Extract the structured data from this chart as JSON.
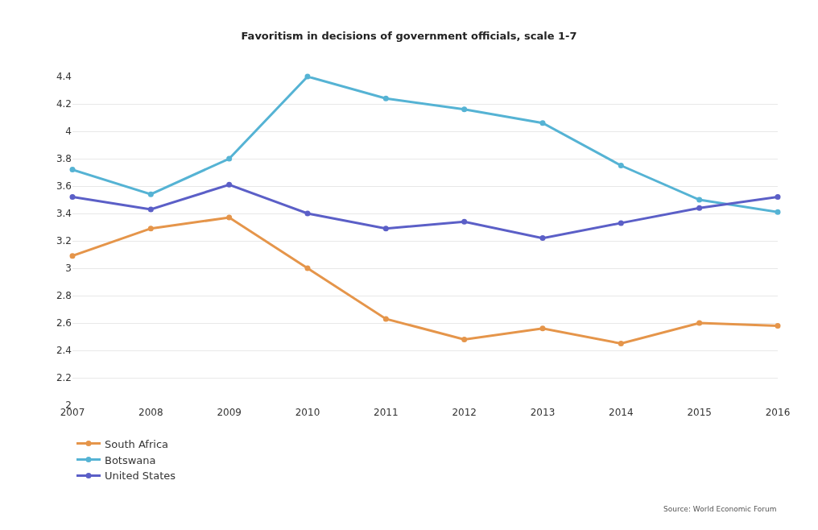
{
  "chart_data": {
    "type": "line",
    "title": "Favoritism in decisions of government officials, scale 1-7",
    "x": [
      2007,
      2008,
      2009,
      2010,
      2011,
      2012,
      2013,
      2014,
      2015,
      2016
    ],
    "xlim": [
      2007,
      2016
    ],
    "xticks": [
      2007,
      2008,
      2009,
      2010,
      2011,
      2012,
      2013,
      2014,
      2015,
      2016
    ],
    "ylim": [
      2,
      4.4
    ],
    "yticks": [
      2,
      2.2,
      2.4,
      2.6,
      2.8,
      3,
      3.2,
      3.4,
      3.6,
      3.8,
      4,
      4.2,
      4.4
    ],
    "series": [
      {
        "name": "South Africa",
        "color": "#e5954a",
        "values": [
          3.09,
          3.29,
          3.37,
          3.0,
          2.63,
          2.48,
          2.56,
          2.45,
          2.6,
          2.58
        ]
      },
      {
        "name": "Botswana",
        "color": "#55b3d4",
        "values": [
          3.72,
          3.54,
          3.8,
          4.4,
          4.24,
          4.16,
          4.06,
          3.75,
          3.5,
          3.41
        ]
      },
      {
        "name": "United States",
        "color": "#5b5fc7",
        "values": [
          3.52,
          3.43,
          3.61,
          3.4,
          3.29,
          3.34,
          3.22,
          3.33,
          3.44,
          3.52
        ]
      }
    ],
    "annotations": [
      "Source: World Economic Forum"
    ],
    "grid": "y",
    "legend": "bottom left",
    "marker": "circle",
    "line_style": "solid"
  }
}
